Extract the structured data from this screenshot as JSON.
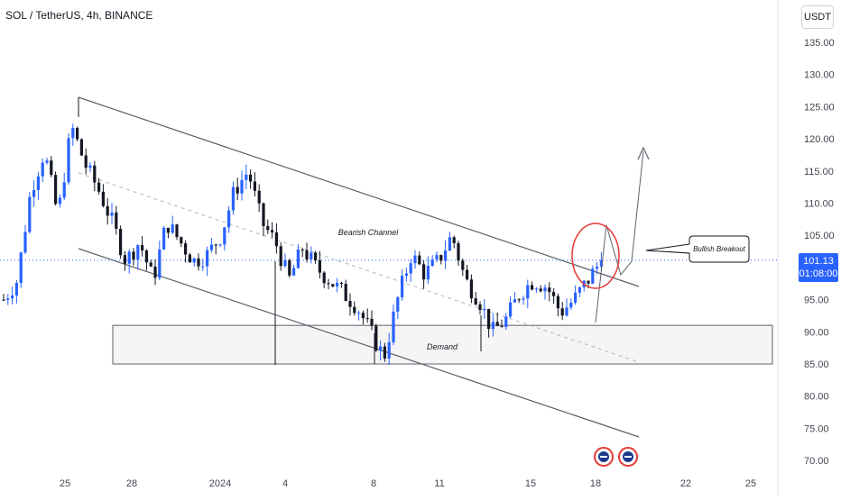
{
  "header": {
    "symbol_title": "SOL / TetherUS, 4h, BINANCE",
    "currency": "USDT"
  },
  "last_price": {
    "value": "101.13",
    "countdown": "01:08:00"
  },
  "colors": {
    "up": "#2962ff",
    "down": "#131722",
    "channel": "#5d606b",
    "midline": "#b2b5be",
    "price_line": "#2962ff",
    "highlight_circle": "#e53935",
    "demand_fill": "#f5f5f5"
  },
  "chart_data": {
    "type": "candlestick",
    "title": "SOL / TetherUS, 4h, BINANCE",
    "ylim": [
      70,
      138
    ],
    "y_ticks": [
      "135.00",
      "130.00",
      "125.00",
      "120.00",
      "115.00",
      "110.00",
      "105.00",
      "100.00",
      "95.00",
      "90.00",
      "85.00",
      "80.00",
      "75.00",
      "70.00"
    ],
    "x_ticks": [
      "25",
      "28",
      "2024",
      "4",
      "8",
      "11",
      "15",
      "18",
      "22",
      "25"
    ],
    "last_price": 101.13,
    "close_path": [
      95,
      98,
      112,
      118,
      108,
      122,
      116,
      112,
      107,
      101,
      104,
      98,
      107,
      104,
      101,
      102,
      105,
      112,
      115,
      107,
      104,
      98,
      103,
      100,
      98,
      96,
      94,
      90,
      86,
      95,
      102,
      99,
      101,
      105,
      98,
      95,
      90,
      92,
      96,
      98,
      97,
      93,
      95,
      98,
      101.13
    ],
    "annotations": [
      {
        "type": "text",
        "text": "Bearish Channel"
      },
      {
        "type": "zone",
        "text": "Demand",
        "y_range": [
          85,
          91
        ]
      },
      {
        "type": "callout",
        "text": "Bullish Breakout"
      },
      {
        "type": "circle",
        "text": ""
      },
      {
        "type": "arrow",
        "text": ""
      }
    ],
    "grid": false
  }
}
